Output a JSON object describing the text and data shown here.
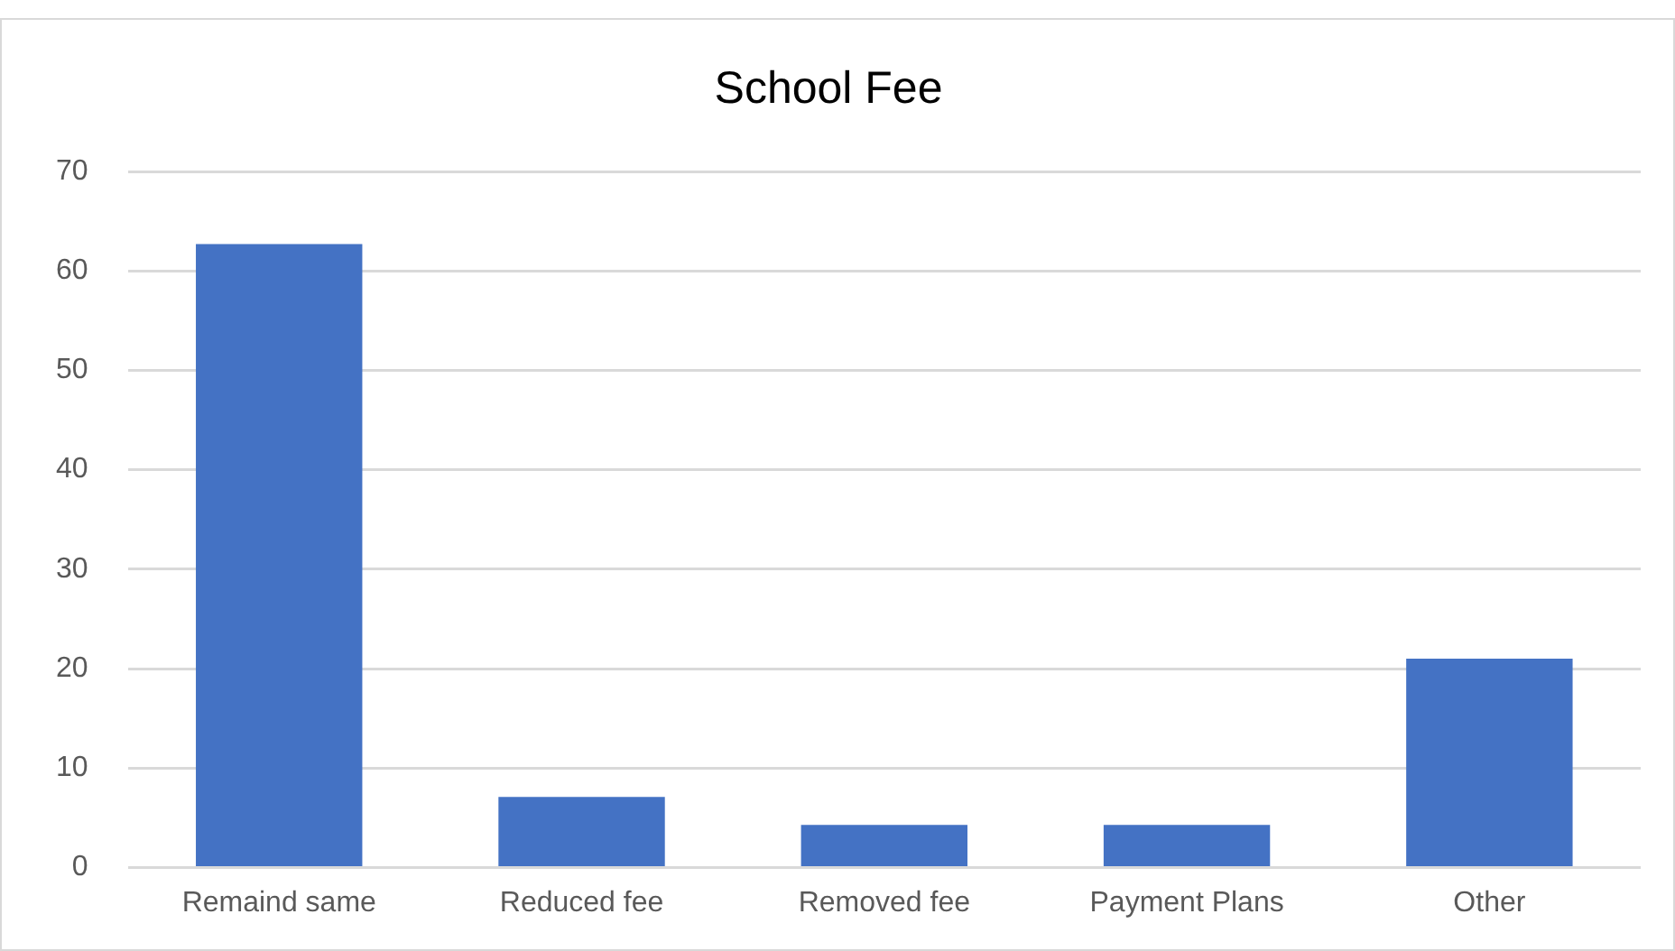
{
  "chart_data": {
    "type": "bar",
    "title": "School Fee",
    "categories": [
      "Remaind same",
      "Reduced fee",
      "Removed fee",
      "Payment Plans",
      "Other"
    ],
    "values": [
      62.7,
      7.1,
      4.3,
      4.3,
      21.0
    ],
    "color": "#4472c4",
    "ylim": [
      0,
      70
    ],
    "yticks": [
      0,
      10,
      20,
      30,
      40,
      50,
      60,
      70
    ],
    "grid": "y",
    "legend": false
  }
}
